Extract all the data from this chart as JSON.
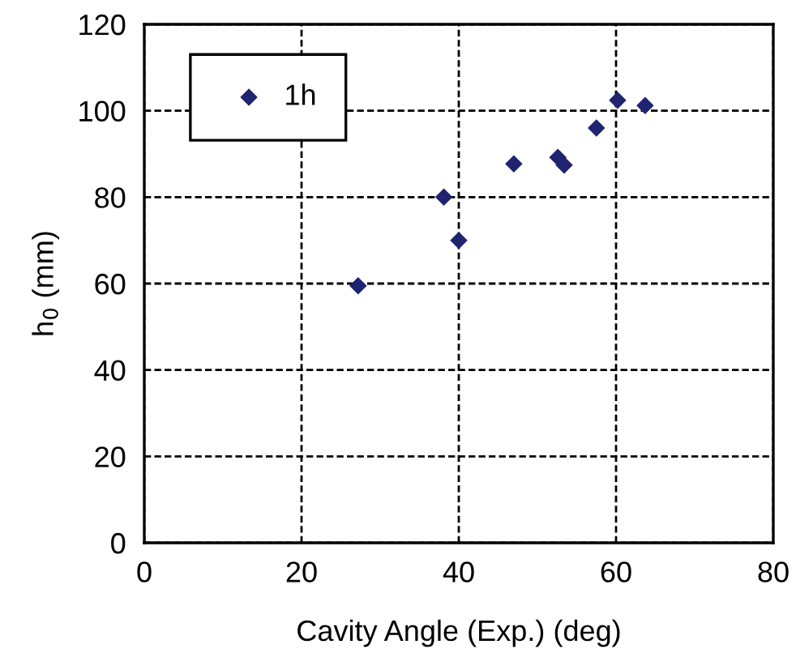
{
  "chart_data": {
    "type": "scatter",
    "xlabel": "Cavity Angle (Exp.) (deg)",
    "ylabel": "h$_{0}$ (mm)",
    "x": [
      27.2,
      38.1,
      40.0,
      47.0,
      52.6,
      53.4,
      57.5,
      60.2,
      63.7
    ],
    "series": [
      {
        "name": "1h",
        "color": "#1f2370",
        "values": [
          59.5,
          80,
          70,
          87.7,
          89.2,
          87.4,
          96,
          102.4,
          101.2
        ]
      }
    ],
    "xlim": [
      0,
      80
    ],
    "xticks": [
      0,
      20,
      40,
      60,
      80
    ],
    "ylim": [
      0,
      120
    ],
    "yticks": [
      0,
      20,
      40,
      60,
      80,
      100,
      120
    ],
    "grid": true,
    "legend": "top left",
    "marker": "diamond"
  }
}
